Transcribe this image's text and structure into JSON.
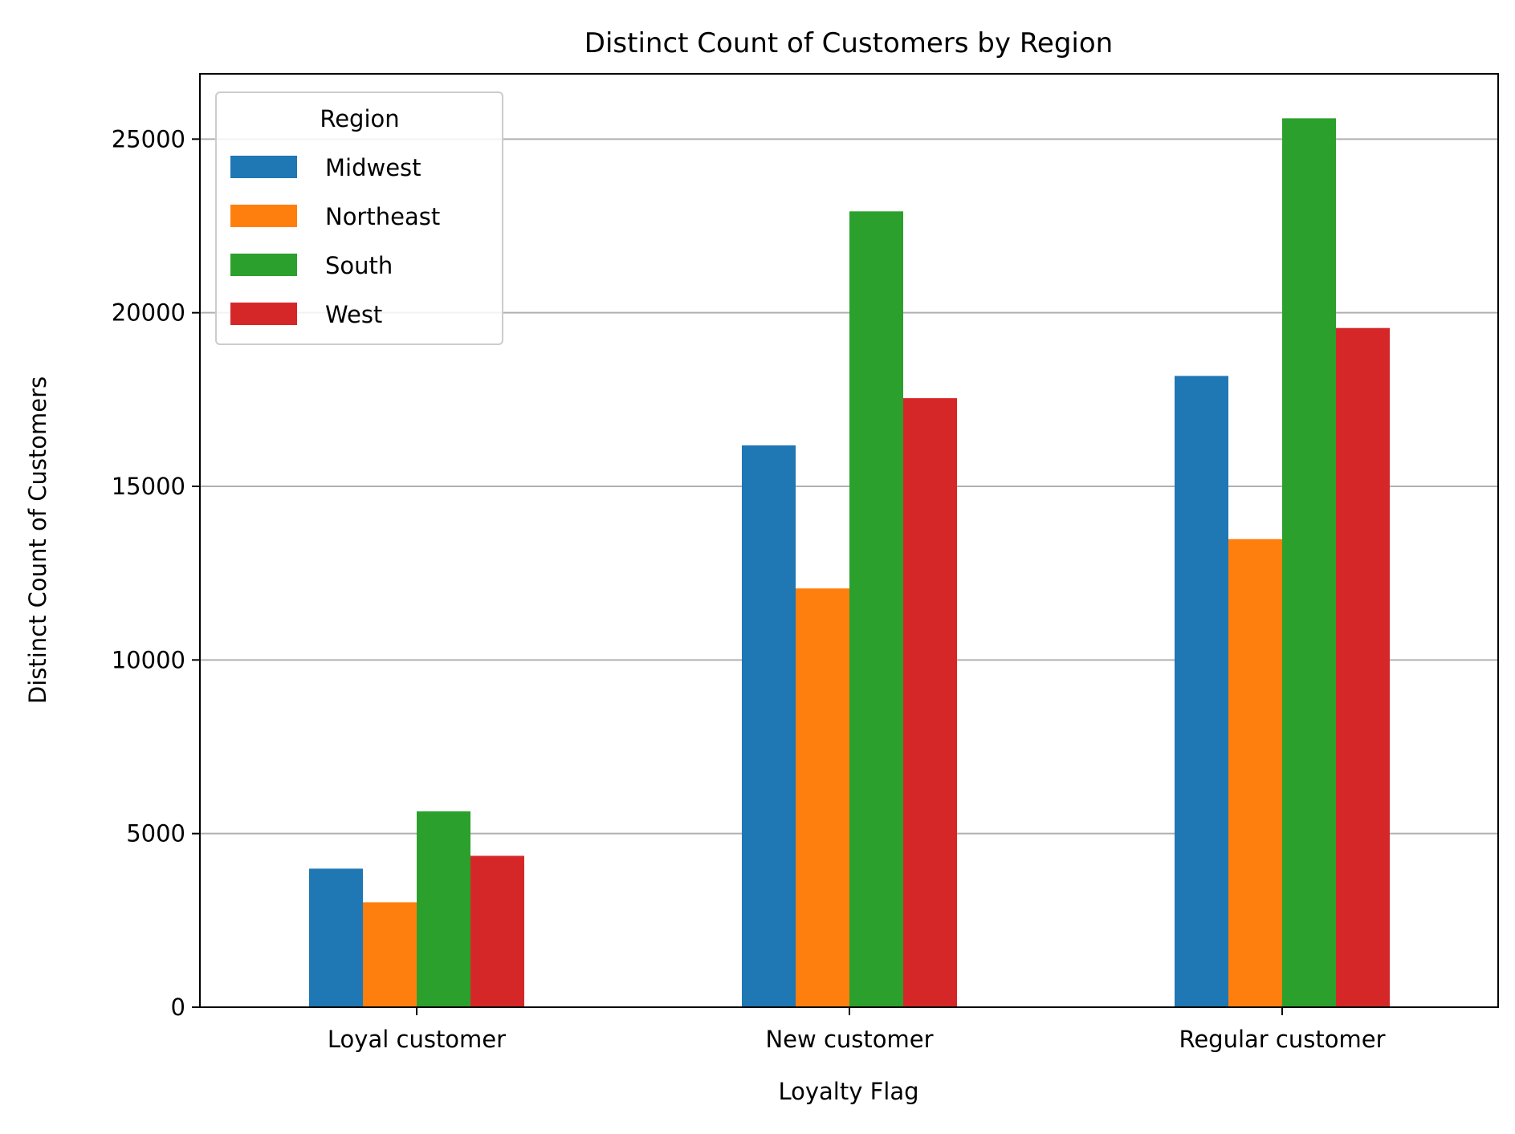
{
  "chart_data": {
    "type": "bar",
    "title": "Distinct Count of Customers by Region",
    "xlabel": "Loyalty Flag",
    "ylabel": "Distinct Count of Customers",
    "categories": [
      "Loyal customer",
      "New customer",
      "Regular customer"
    ],
    "series": [
      {
        "name": "Midwest",
        "color": "#1f77b4",
        "values": [
          3990,
          16180,
          18180
        ]
      },
      {
        "name": "Northeast",
        "color": "#ff7f0e",
        "values": [
          3020,
          12060,
          13480
        ]
      },
      {
        "name": "South",
        "color": "#2ca02c",
        "values": [
          5640,
          22920,
          25600
        ]
      },
      {
        "name": "West",
        "color": "#d62728",
        "values": [
          4360,
          17540,
          19560
        ]
      }
    ],
    "ylim": [
      0,
      26880
    ],
    "yticks": [
      0,
      5000,
      10000,
      15000,
      20000,
      25000
    ],
    "grid": "y-major",
    "legend": {
      "title": "Region",
      "position": "upper-left"
    }
  }
}
